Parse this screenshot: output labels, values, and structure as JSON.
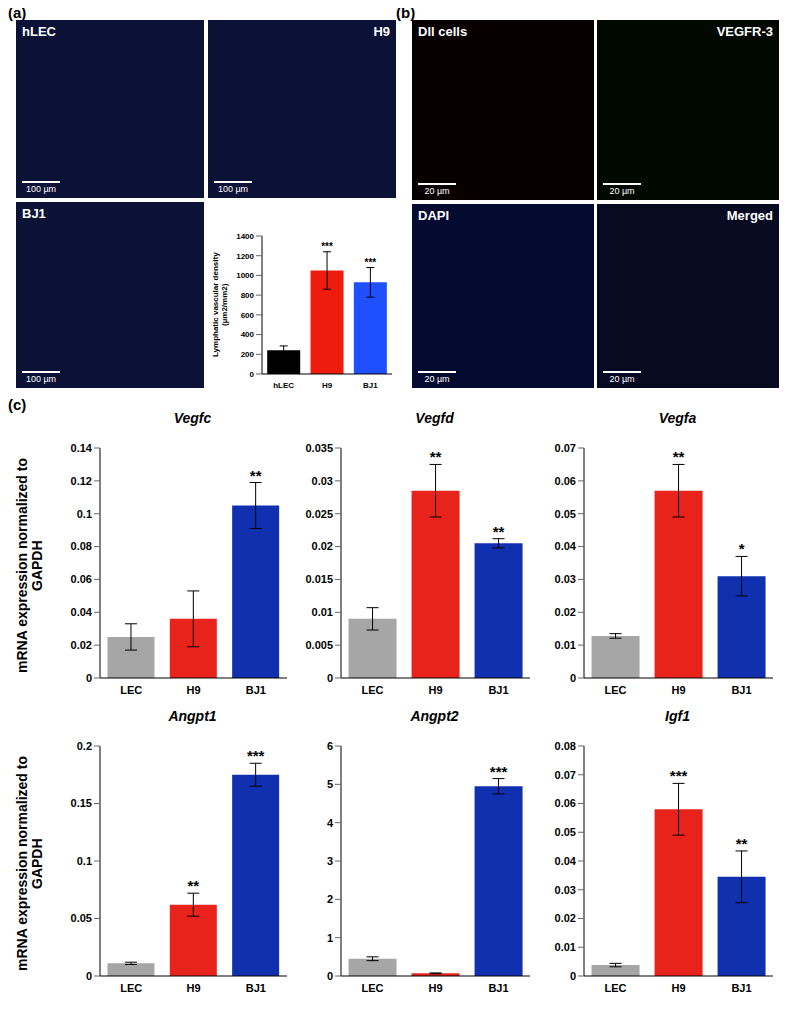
{
  "panel_labels": [
    "(a)",
    "(b)",
    "(c)"
  ],
  "images": [
    {
      "panel": "(a)",
      "label": "hLEC",
      "scale_bar": "100 µm"
    },
    {
      "panel": "(a)",
      "label": "H9",
      "scale_bar": "100 µm"
    },
    {
      "panel": "(a)",
      "label": "BJ1",
      "scale_bar": "100 µm"
    },
    {
      "panel": "(b)",
      "label": "Dll cells",
      "scale_bar": "20 µm"
    },
    {
      "panel": "(b)",
      "label": "VEGFR-3",
      "scale_bar": "20 µm"
    },
    {
      "panel": "(b)",
      "label": "DAPI",
      "scale_bar": "20 µm"
    },
    {
      "panel": "(b)",
      "label": "Merged",
      "scale_bar": "20 µm"
    }
  ],
  "chart_data": [
    {
      "type": "bar",
      "ylabel": "Lymphatic vascular density (µm2/mm2)",
      "categories": [
        "hLEC",
        "H9",
        "BJ1"
      ],
      "values": [
        240,
        1050,
        930
      ],
      "errors": [
        45,
        190,
        150
      ],
      "annotations": [
        null,
        "***",
        "***"
      ],
      "colors": [
        "#000000",
        "#ee1c0c",
        "#1e50ff"
      ],
      "ylim": [
        0,
        1400
      ],
      "yticks": [
        0,
        200,
        400,
        600,
        800,
        1000,
        1200,
        1400
      ]
    },
    {
      "type": "bar",
      "title": "Vegfc",
      "ylabel": "mRNA expression normalized to GAPDH",
      "categories": [
        "LEC",
        "H9",
        "BJ1"
      ],
      "values": [
        0.025,
        0.036,
        0.105
      ],
      "errors": [
        0.008,
        0.017,
        0.014
      ],
      "annotations": [
        null,
        null,
        "**"
      ],
      "colors": [
        "#a6a6a6",
        "#e8231b",
        "#1030b0"
      ],
      "ylim": [
        0,
        0.14
      ],
      "yticks": [
        0,
        0.02,
        0.04,
        0.06,
        0.08,
        0.1,
        0.12,
        0.14
      ]
    },
    {
      "type": "bar",
      "title": "Vegfd",
      "categories": [
        "LEC",
        "H9",
        "BJ1"
      ],
      "values": [
        0.009,
        0.0285,
        0.0205
      ],
      "errors": [
        0.0017,
        0.004,
        0.0007
      ],
      "annotations": [
        null,
        "**",
        "**"
      ],
      "colors": [
        "#a6a6a6",
        "#e8231b",
        "#1030b0"
      ],
      "ylim": [
        0,
        0.035
      ],
      "yticks": [
        0,
        0.005,
        0.01,
        0.015,
        0.02,
        0.025,
        0.03,
        0.035
      ]
    },
    {
      "type": "bar",
      "title": "Vegfa",
      "categories": [
        "LEC",
        "H9",
        "BJ1"
      ],
      "values": [
        0.0128,
        0.057,
        0.031
      ],
      "errors": [
        0.0007,
        0.008,
        0.006
      ],
      "annotations": [
        null,
        "**",
        "*"
      ],
      "colors": [
        "#a6a6a6",
        "#e8231b",
        "#1030b0"
      ],
      "ylim": [
        0,
        0.07
      ],
      "yticks": [
        0,
        0.01,
        0.02,
        0.03,
        0.04,
        0.05,
        0.06,
        0.07
      ]
    },
    {
      "type": "bar",
      "title": "Angpt1",
      "ylabel": "mRNA expression normalized to GAPDH",
      "categories": [
        "LEC",
        "H9",
        "BJ1"
      ],
      "values": [
        0.011,
        0.062,
        0.175
      ],
      "errors": [
        0.001,
        0.01,
        0.01
      ],
      "annotations": [
        null,
        "**",
        "***"
      ],
      "colors": [
        "#a6a6a6",
        "#e8231b",
        "#1030b0"
      ],
      "ylim": [
        0,
        0.2
      ],
      "yticks": [
        0,
        0.05,
        0.1,
        0.15,
        0.2
      ]
    },
    {
      "type": "bar",
      "title": "Angpt2",
      "categories": [
        "LEC",
        "H9",
        "BJ1"
      ],
      "values": [
        0.45,
        0.07,
        4.95
      ],
      "errors": [
        0.05,
        0.01,
        0.2
      ],
      "annotations": [
        null,
        null,
        "***"
      ],
      "colors": [
        "#a6a6a6",
        "#e8231b",
        "#1030b0"
      ],
      "ylim": [
        0,
        6
      ],
      "yticks": [
        0,
        1,
        2,
        3,
        4,
        5,
        6
      ]
    },
    {
      "type": "bar",
      "title": "Igf1",
      "categories": [
        "LEC",
        "H9",
        "BJ1"
      ],
      "values": [
        0.0038,
        0.058,
        0.0345
      ],
      "errors": [
        0.0006,
        0.009,
        0.009
      ],
      "annotations": [
        null,
        "***",
        "**"
      ],
      "colors": [
        "#a6a6a6",
        "#e8231b",
        "#1030b0"
      ],
      "ylim": [
        0,
        0.08
      ],
      "yticks": [
        0,
        0.01,
        0.02,
        0.03,
        0.04,
        0.05,
        0.06,
        0.07,
        0.08
      ]
    }
  ]
}
